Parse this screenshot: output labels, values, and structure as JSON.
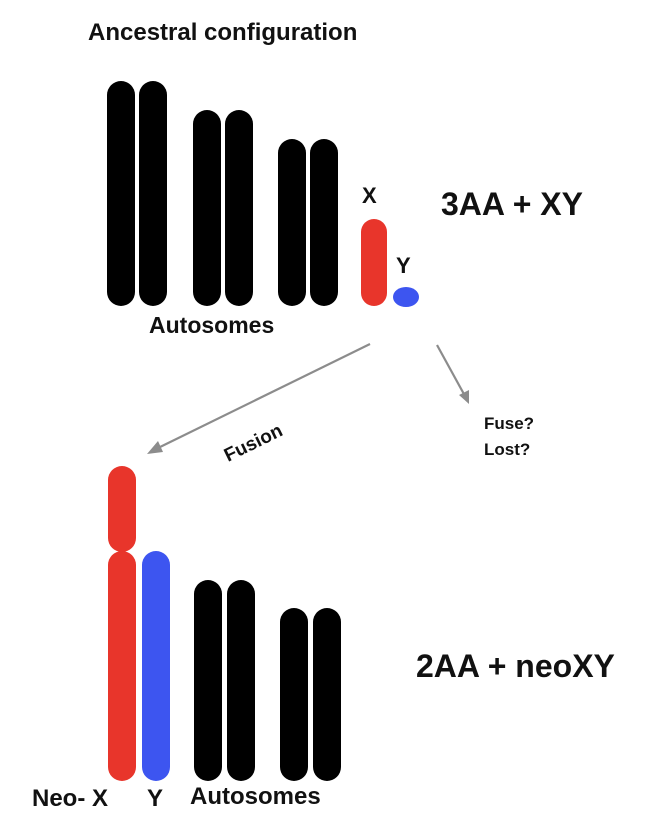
{
  "labels": {
    "title": "Ancestral configuration",
    "ancestral_autosomes": "Autosomes",
    "x_label": "X",
    "y_label": "Y",
    "ancestral_formula": "3AA + XY",
    "fusion": "Fusion",
    "fuse_q": "Fuse?",
    "lost_q": "Lost?",
    "neo_prefix": "Neo- X",
    "neo_y": "Y",
    "derived_autosomes": "Autosomes",
    "derived_formula": "2AA + neoXY"
  },
  "colors": {
    "autosome": "#000000",
    "x_chromosome": "#e8352b",
    "y_chromosome": "#3d55f0",
    "arrow": "#8c8c8c"
  }
}
